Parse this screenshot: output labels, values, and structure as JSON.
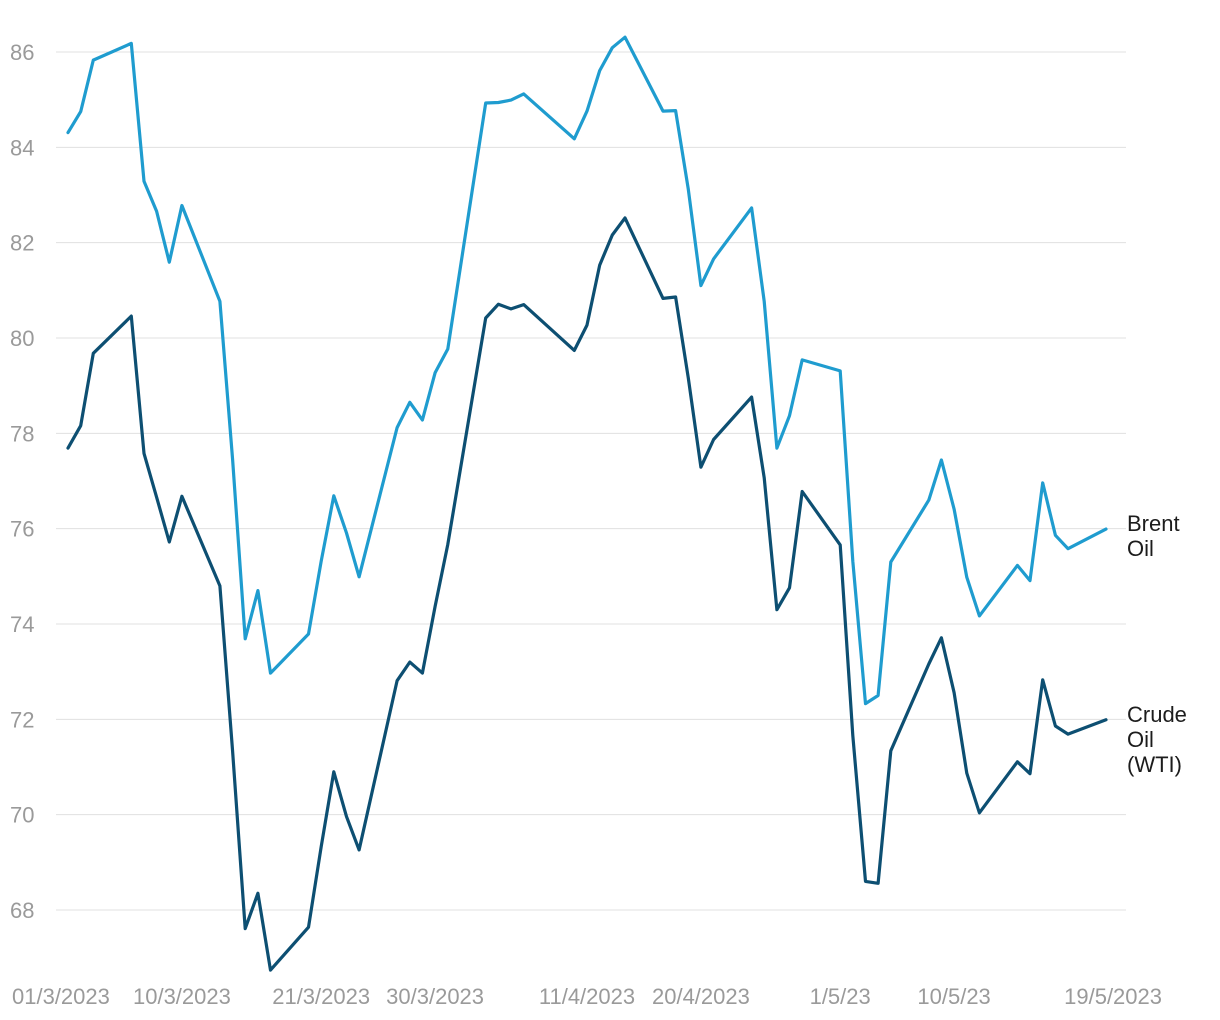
{
  "chart_data": {
    "type": "line",
    "title": "",
    "xlabel": "",
    "ylabel": "",
    "ylim": [
      67,
      87
    ],
    "yticks": [
      68,
      70,
      72,
      74,
      76,
      78,
      80,
      82,
      84,
      86
    ],
    "grid": true,
    "x_tick_labels": [
      {
        "at": "2023-03-01",
        "label": "01/3/2023"
      },
      {
        "at": "2023-03-10",
        "label": "10/3/2023"
      },
      {
        "at": "2023-03-21",
        "label": "21/3/2023"
      },
      {
        "at": "2023-03-30",
        "label": "30/3/2023"
      },
      {
        "at": "2023-04-11",
        "label": "11/4/2023"
      },
      {
        "at": "2023-04-20",
        "label": "20/4/2023"
      },
      {
        "at": "2023-05-01",
        "label": "1/5/23"
      },
      {
        "at": "2023-05-10",
        "label": "10/5/23"
      },
      {
        "at": "2023-05-19",
        "label": "19/5/2023"
      }
    ],
    "x": [
      "2023-03-01",
      "2023-03-02",
      "2023-03-03",
      "2023-03-06",
      "2023-03-07",
      "2023-03-08",
      "2023-03-09",
      "2023-03-10",
      "2023-03-13",
      "2023-03-14",
      "2023-03-15",
      "2023-03-16",
      "2023-03-17",
      "2023-03-20",
      "2023-03-21",
      "2023-03-22",
      "2023-03-23",
      "2023-03-24",
      "2023-03-27",
      "2023-03-28",
      "2023-03-29",
      "2023-03-30",
      "2023-03-31",
      "2023-04-03",
      "2023-04-04",
      "2023-04-05",
      "2023-04-06",
      "2023-04-10",
      "2023-04-11",
      "2023-04-12",
      "2023-04-13",
      "2023-04-14",
      "2023-04-17",
      "2023-04-18",
      "2023-04-19",
      "2023-04-20",
      "2023-04-21",
      "2023-04-24",
      "2023-04-25",
      "2023-04-26",
      "2023-04-27",
      "2023-04-28",
      "2023-05-01",
      "2023-05-02",
      "2023-05-03",
      "2023-05-04",
      "2023-05-05",
      "2023-05-08",
      "2023-05-09",
      "2023-05-10",
      "2023-05-11",
      "2023-05-12",
      "2023-05-15",
      "2023-05-16",
      "2023-05-17",
      "2023-05-18",
      "2023-05-19",
      "2023-05-22"
    ],
    "series": [
      {
        "name": "Brent Oil",
        "label_lines": [
          "Brent",
          "Oil"
        ],
        "color": "#1f9ccf",
        "values": [
          84.31,
          84.75,
          85.83,
          86.18,
          83.29,
          82.66,
          81.59,
          82.78,
          80.77,
          77.45,
          73.69,
          74.7,
          72.97,
          73.79,
          75.32,
          76.69,
          75.91,
          74.99,
          78.12,
          78.65,
          78.28,
          79.27,
          79.77,
          84.93,
          84.94,
          84.99,
          85.12,
          84.18,
          84.76,
          85.61,
          86.09,
          86.31,
          84.76,
          84.77,
          83.12,
          81.1,
          81.66,
          82.73,
          80.77,
          77.69,
          78.37,
          79.54,
          79.31,
          75.32,
          72.33,
          72.5,
          75.3,
          76.6,
          77.44,
          76.41,
          74.98,
          74.17,
          75.23,
          74.91,
          76.96,
          75.86,
          75.58,
          75.99
        ]
      },
      {
        "name": "Crude Oil (WTI)",
        "label_lines": [
          "Crude",
          "Oil",
          "(WTI)"
        ],
        "color": "#0d4f72",
        "values": [
          77.69,
          78.16,
          79.68,
          80.46,
          77.58,
          76.66,
          75.72,
          76.68,
          74.8,
          71.33,
          67.61,
          68.35,
          66.74,
          67.64,
          69.33,
          70.9,
          69.96,
          69.26,
          72.81,
          73.2,
          72.97,
          74.37,
          75.67,
          80.42,
          80.71,
          80.61,
          80.7,
          79.74,
          80.27,
          81.53,
          82.16,
          82.52,
          80.83,
          80.86,
          79.16,
          77.29,
          77.87,
          78.76,
          77.07,
          74.3,
          74.76,
          76.78,
          75.66,
          71.66,
          68.6,
          68.56,
          71.34,
          73.16,
          73.71,
          72.56,
          70.87,
          70.04,
          71.11,
          70.86,
          72.83,
          71.86,
          71.69,
          71.99
        ]
      }
    ]
  }
}
